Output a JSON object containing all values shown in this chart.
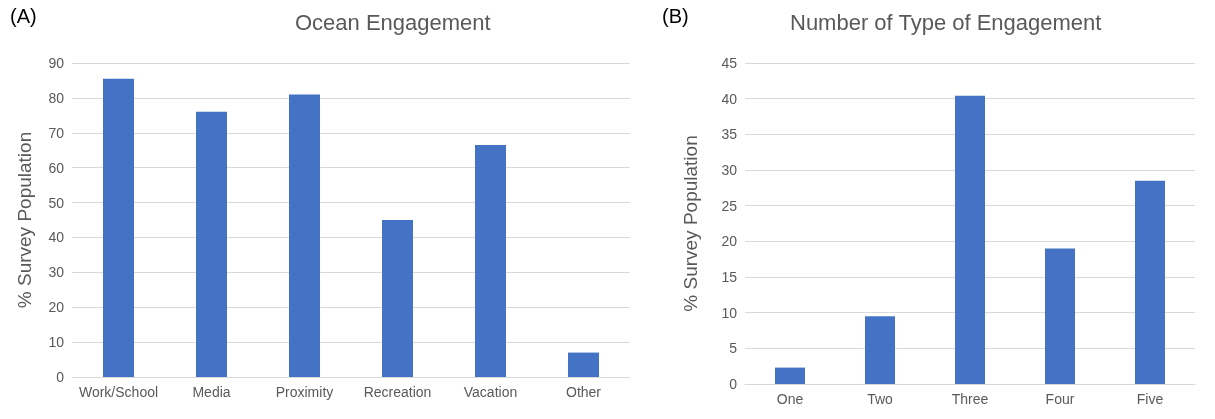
{
  "chart_data": [
    {
      "type": "bar",
      "title": "Ocean Engagement",
      "ylabel": "% Survey Population",
      "annotations": [
        "(A)"
      ],
      "categories": [
        "Work/School",
        "Media",
        "Proximity",
        "Recreation",
        "Vacation",
        "Other"
      ],
      "values": [
        85.5,
        76,
        81,
        45,
        66.5,
        7
      ],
      "color": "#4472c4",
      "ylim": [
        0,
        90
      ],
      "yticks": [
        0,
        10,
        20,
        30,
        40,
        50,
        60,
        70,
        80,
        90
      ],
      "grid": "y"
    },
    {
      "type": "bar",
      "title": "Number of Type of Engagement",
      "ylabel": "% Survey Population",
      "annotations": [
        "(B)"
      ],
      "categories": [
        "One",
        "Two",
        "Three",
        "Four",
        "Five"
      ],
      "values": [
        2.3,
        9.5,
        40.4,
        19,
        28.5
      ],
      "color": "#4472c4",
      "ylim": [
        0,
        45
      ],
      "yticks": [
        0,
        5,
        10,
        15,
        20,
        25,
        30,
        35,
        40,
        45
      ],
      "grid": "y"
    }
  ]
}
